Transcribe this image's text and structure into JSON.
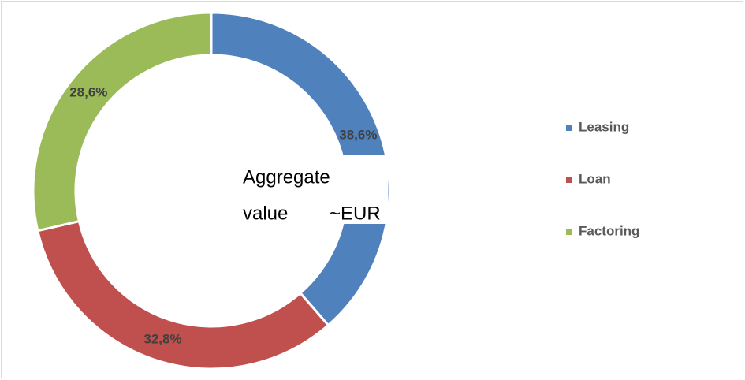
{
  "chart_data": {
    "type": "donut",
    "categories": [
      "Leasing",
      "Loan",
      "Factoring"
    ],
    "values": [
      38.6,
      32.8,
      28.6
    ],
    "value_labels": [
      "38,6%",
      "32,8%",
      "28,6%"
    ],
    "colors": [
      "#4f81bd",
      "#c0504d",
      "#9bbb59"
    ],
    "annotations": [
      "Aggregate",
      "value",
      "~EUR"
    ],
    "legend": "right"
  }
}
